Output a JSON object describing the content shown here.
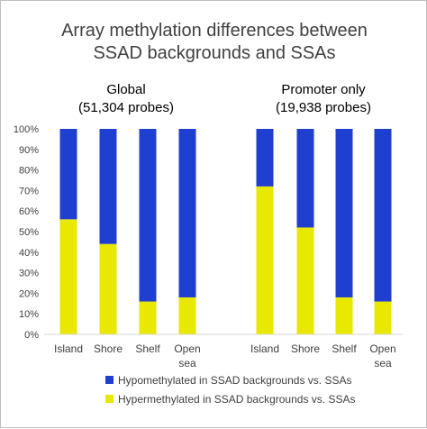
{
  "chart_data": {
    "type": "bar",
    "stacked": true,
    "title_lines": [
      "Array methylation differences between",
      "SSAD backgrounds and SSAs"
    ],
    "groups": [
      {
        "title_lines": [
          "Global",
          "(51,304 probes)"
        ],
        "categories": [
          [
            "Island"
          ],
          [
            "Shore"
          ],
          [
            "Shelf"
          ],
          [
            "Open",
            "sea"
          ]
        ]
      },
      {
        "title_lines": [
          "Promoter only",
          "(19,938 probes)"
        ],
        "categories": [
          [
            "Island"
          ],
          [
            "Shore"
          ],
          [
            "Shelf"
          ],
          [
            "Open",
            "sea"
          ]
        ]
      }
    ],
    "series": [
      {
        "name": "Hypomethylated in SSAD backgrounds vs. SSAs",
        "color": "#1f3fd0",
        "values": [
          44,
          56,
          84,
          82,
          28,
          48,
          82,
          84
        ]
      },
      {
        "name": "Hypermethylated in SSAD backgrounds vs. SSAs",
        "color": "#e8e800",
        "values": [
          56,
          44,
          16,
          18,
          72,
          52,
          18,
          16
        ]
      }
    ],
    "stack_order": [
      "Hypermethylated in SSAD backgrounds vs. SSAs",
      "Hypomethylated in SSAD backgrounds vs. SSAs"
    ],
    "ylim": [
      0,
      100
    ],
    "y_ticks": [
      "0%",
      "10%",
      "20%",
      "30%",
      "40%",
      "50%",
      "60%",
      "70%",
      "80%",
      "90%",
      "100%"
    ],
    "grid": false,
    "legend": "bottom"
  }
}
